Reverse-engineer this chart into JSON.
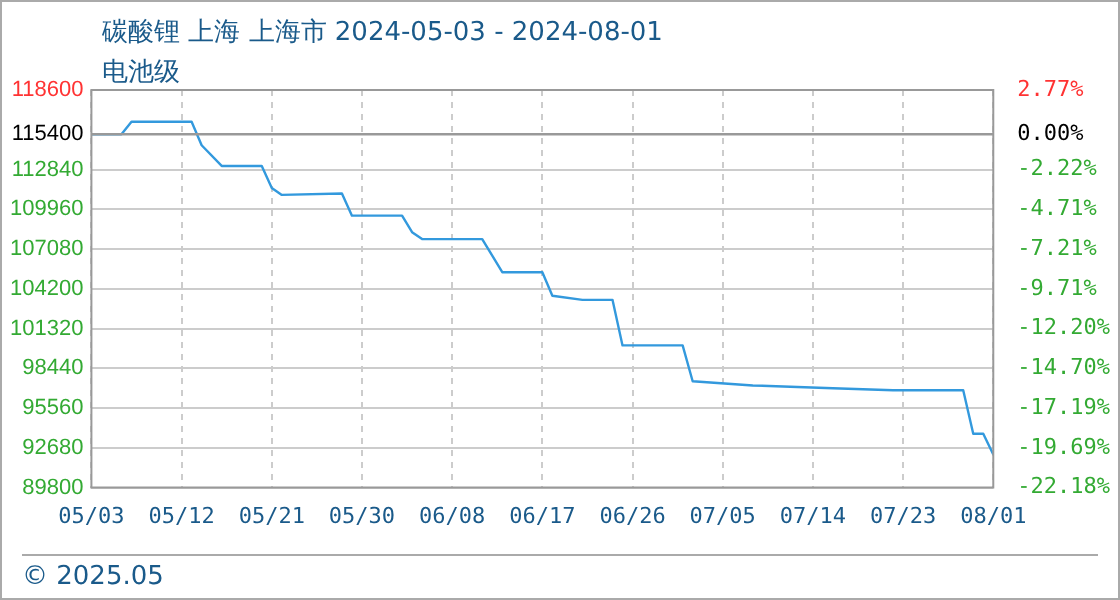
{
  "chart_data": {
    "type": "line",
    "title": "碳酸锂 上海 上海市 2024-05-03 - 2024-08-01",
    "subtitle": "电池级",
    "x": [
      "2024-05-03",
      "2024-05-06",
      "2024-05-07",
      "2024-05-13",
      "2024-05-14",
      "2024-05-16",
      "2024-05-20",
      "2024-05-21",
      "2024-05-22",
      "2024-05-28",
      "2024-05-29",
      "2024-06-03",
      "2024-06-04",
      "2024-06-05",
      "2024-06-11",
      "2024-06-12",
      "2024-06-13",
      "2024-06-17",
      "2024-06-18",
      "2024-06-21",
      "2024-06-24",
      "2024-06-25",
      "2024-07-01",
      "2024-07-02",
      "2024-07-08",
      "2024-07-16",
      "2024-07-22",
      "2024-07-29",
      "2024-07-30",
      "2024-07-31",
      "2024-08-01"
    ],
    "series": [
      {
        "color": "#3399dd",
        "values": [
          115400,
          115400,
          116300,
          116300,
          114600,
          113100,
          113100,
          111500,
          111000,
          111100,
          109500,
          109500,
          108300,
          107800,
          107800,
          106600,
          105400,
          105400,
          103700,
          103400,
          103400,
          100100,
          100100,
          97500,
          97200,
          97000,
          96850,
          96850,
          93700,
          93700,
          92200
        ]
      }
    ],
    "ylim": [
      89800,
      118600
    ],
    "yticks": [
      89800,
      92680,
      95560,
      98440,
      101320,
      104200,
      107080,
      109960,
      112840,
      115400,
      118600
    ],
    "y2lim": [
      -22.18,
      2.77
    ],
    "y2ticks": [
      {
        "value": -22.18,
        "label": "-22.18%"
      },
      {
        "value": -19.69,
        "label": "-19.69%"
      },
      {
        "value": -17.19,
        "label": "-17.19%"
      },
      {
        "value": -14.7,
        "label": "-14.70%"
      },
      {
        "value": -12.2,
        "label": "-12.20%"
      },
      {
        "value": -9.71,
        "label": "-9.71%"
      },
      {
        "value": -7.21,
        "label": "-7.21%"
      },
      {
        "value": -4.71,
        "label": "-4.71%"
      },
      {
        "value": -2.22,
        "label": "-2.22%"
      },
      {
        "value": 0,
        "label": "0.00%"
      },
      {
        "value": 2.77,
        "label": "2.77%"
      }
    ],
    "xlim": [
      "2024-05-03",
      "2024-08-01"
    ],
    "xticks": [
      {
        "value": "2024-05-03",
        "label": "05/03"
      },
      {
        "value": "2024-05-12",
        "label": "05/12"
      },
      {
        "value": "2024-05-21",
        "label": "05/21"
      },
      {
        "value": "2024-05-30",
        "label": "05/30"
      },
      {
        "value": "2024-06-08",
        "label": "06/08"
      },
      {
        "value": "2024-06-17",
        "label": "06/17"
      },
      {
        "value": "2024-06-26",
        "label": "06/26"
      },
      {
        "value": "2024-07-05",
        "label": "07/05"
      },
      {
        "value": "2024-07-14",
        "label": "07/14"
      },
      {
        "value": "2024-07-23",
        "label": "07/23"
      },
      {
        "value": "2024-08-01",
        "label": "08/01"
      }
    ],
    "ref_lines": [
      {
        "axis": "y",
        "value": 115400,
        "color": "#999999"
      }
    ],
    "grid": true,
    "legend": false,
    "marker": "none",
    "line_style": "solid",
    "annotations": [
      "© 2025.05"
    ]
  }
}
